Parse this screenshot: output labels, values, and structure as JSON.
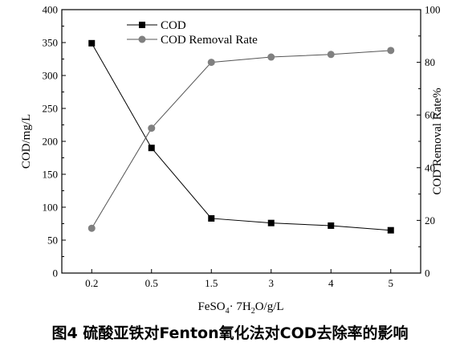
{
  "caption": "图4 硫酸亚铁对Fenton氧化法对COD去除率的影响",
  "chart_data": {
    "type": "line",
    "categories": [
      "0.2",
      "0.5",
      "1.5",
      "3",
      "4",
      "5"
    ],
    "series": [
      {
        "name": "COD",
        "axis": "left",
        "marker": "square",
        "color": "#000000",
        "values": [
          349,
          190,
          83,
          76,
          72,
          65
        ]
      },
      {
        "name": "COD Removal Rate",
        "axis": "right",
        "marker": "circle",
        "color": "#808080",
        "values": [
          17,
          55,
          80,
          82,
          83,
          84.5
        ]
      }
    ],
    "xlabel": {
      "main": "FeSO",
      "sub1": "4",
      "mid": "· 7H",
      "sub2": "2",
      "tail": "O/g/L"
    },
    "ylabel_left": "COD/mg/L",
    "ylabel_right": "COD Removal Rate%",
    "ylim_left": [
      0,
      400
    ],
    "ylim_right": [
      0,
      100
    ],
    "yticks_left": [
      "0",
      "50",
      "100",
      "150",
      "200",
      "250",
      "300",
      "350",
      "400"
    ],
    "yticks_right": [
      "0",
      "20",
      "40",
      "60",
      "80",
      "100"
    ],
    "legend_position": "top-left",
    "grid": false
  }
}
